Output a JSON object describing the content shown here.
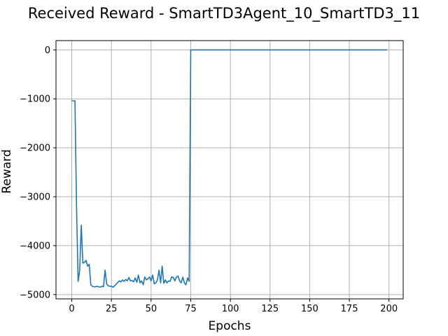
{
  "chart_data": {
    "type": "line",
    "title": "Received Reward - SmartTD3Agent_10_SmartTD3_11",
    "xlabel": "Epochs",
    "ylabel": "Reward",
    "xlim": [
      -9.95,
      208.95
    ],
    "ylim": [
      -5088,
      190
    ],
    "xticks": [
      0,
      25,
      50,
      75,
      100,
      125,
      150,
      175,
      200
    ],
    "xtick_labels": [
      "0",
      "25",
      "50",
      "75",
      "100",
      "125",
      "150",
      "175",
      "200"
    ],
    "yticks": [
      0,
      -1000,
      -2000,
      -3000,
      -4000,
      -5000
    ],
    "ytick_labels": [
      "0",
      "−1000",
      "−2000",
      "−3000",
      "−4000",
      "−5000"
    ],
    "grid": true,
    "line_color": "#1f77b4",
    "series": [
      {
        "x": [
          0,
          1,
          2,
          3,
          4,
          5,
          6,
          7,
          8,
          9,
          10,
          11,
          12,
          13,
          14,
          15,
          16,
          17,
          18,
          19,
          20,
          21,
          22,
          23,
          24,
          25,
          26,
          27,
          28,
          29,
          30,
          31,
          32,
          33,
          34,
          35,
          36,
          37,
          38,
          39,
          40,
          41,
          42,
          43,
          44,
          45,
          46,
          47,
          48,
          49,
          50,
          51,
          52,
          53,
          54,
          55,
          56,
          57,
          58,
          59,
          60,
          61,
          62,
          63,
          64,
          65,
          66,
          67,
          68,
          69,
          70,
          71,
          72,
          73,
          74,
          75,
          199
        ],
        "y": [
          -1040,
          -1040,
          -1040,
          -3200,
          -4730,
          -4500,
          -3580,
          -4360,
          -4340,
          -4300,
          -4420,
          -4380,
          -4800,
          -4830,
          -4840,
          -4840,
          -4830,
          -4840,
          -4850,
          -4830,
          -4840,
          -4500,
          -4780,
          -4820,
          -4830,
          -4830,
          -4850,
          -4820,
          -4790,
          -4750,
          -4720,
          -4740,
          -4700,
          -4730,
          -4690,
          -4720,
          -4650,
          -4720,
          -4710,
          -4740,
          -4660,
          -4750,
          -4600,
          -4760,
          -4720,
          -4800,
          -4640,
          -4700,
          -4680,
          -4640,
          -4720,
          -4600,
          -4780,
          -4760,
          -4700,
          -4500,
          -4760,
          -4420,
          -4770,
          -4700,
          -4760,
          -4720,
          -4730,
          -4640,
          -4650,
          -4720,
          -4640,
          -4620,
          -4720,
          -4760,
          -4640,
          -4760,
          -4800,
          -4660,
          -4730,
          0,
          0
        ]
      }
    ]
  }
}
